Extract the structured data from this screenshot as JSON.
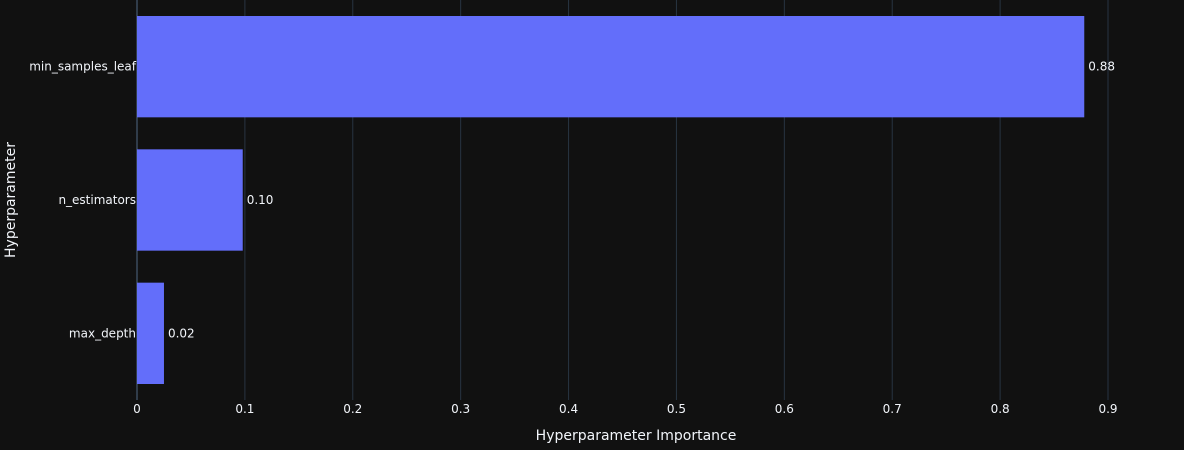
{
  "chart_data": {
    "type": "bar",
    "orientation": "horizontal",
    "categories": [
      "min_samples_leaf",
      "n_estimators",
      "max_depth"
    ],
    "values": [
      0.878,
      0.098,
      0.025
    ],
    "value_labels": [
      "0.88",
      "0.10",
      "0.02"
    ],
    "xlabel": "Hyperparameter Importance",
    "ylabel": "Hyperparameter",
    "xlim": [
      0,
      0.9
    ],
    "x_ticks": [
      "0",
      "0.1",
      "0.2",
      "0.3",
      "0.4",
      "0.5",
      "0.6",
      "0.7",
      "0.8",
      "0.9"
    ],
    "grid": true,
    "bar_color": "#636efa",
    "background_color": "#111111",
    "grid_color": "#283442",
    "text_color": "#f2f5fa"
  }
}
